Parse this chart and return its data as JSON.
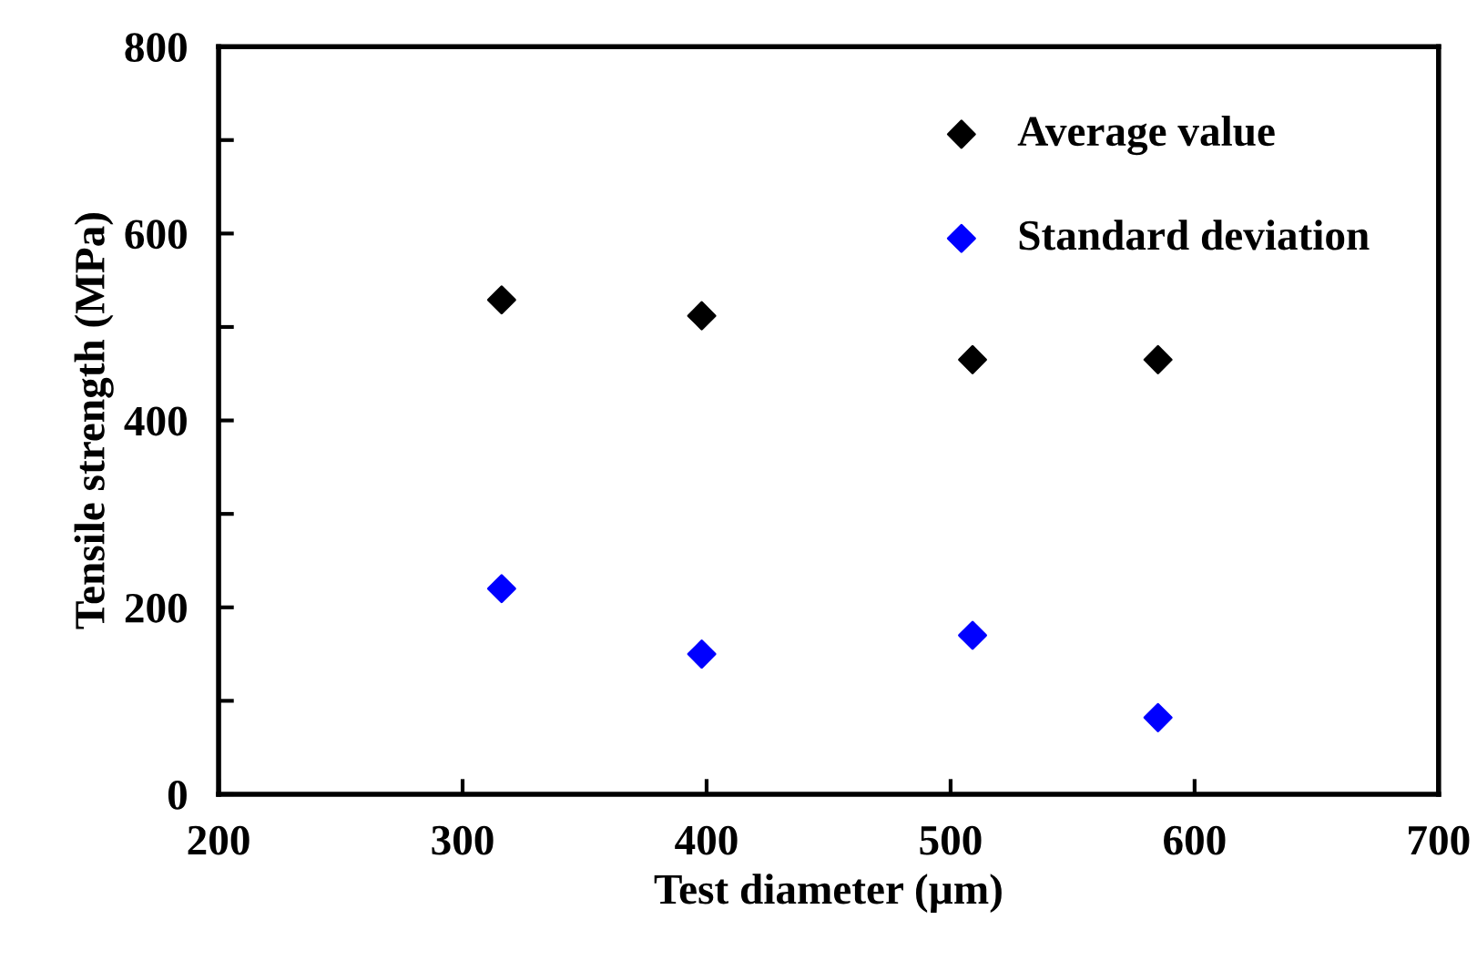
{
  "chart_data": {
    "type": "scatter",
    "xlabel": "Test diameter (µm)",
    "ylabel": "Tensile strength (MPa)",
    "xlim": [
      200,
      700
    ],
    "xticks": [
      200,
      300,
      400,
      500,
      600,
      700
    ],
    "ylim": [
      0,
      800
    ],
    "yticks": [
      0,
      {
        "value": 100,
        "label": null
      },
      200,
      {
        "value": 300,
        "label": null
      },
      400,
      {
        "value": 500,
        "label": null
      },
      600,
      {
        "value": 700,
        "label": null
      },
      800
    ],
    "marker": "diamond",
    "grid": false,
    "legend": "top right",
    "series": [
      {
        "name": "Average value",
        "color": "#000000",
        "x": [
          316,
          398,
          509,
          585
        ],
        "values": [
          529,
          512,
          465,
          465
        ]
      },
      {
        "name": "Standard deviation",
        "color": "#0000ff",
        "x": [
          316,
          398,
          509,
          585
        ],
        "values": [
          220,
          150,
          170,
          82
        ]
      }
    ]
  }
}
